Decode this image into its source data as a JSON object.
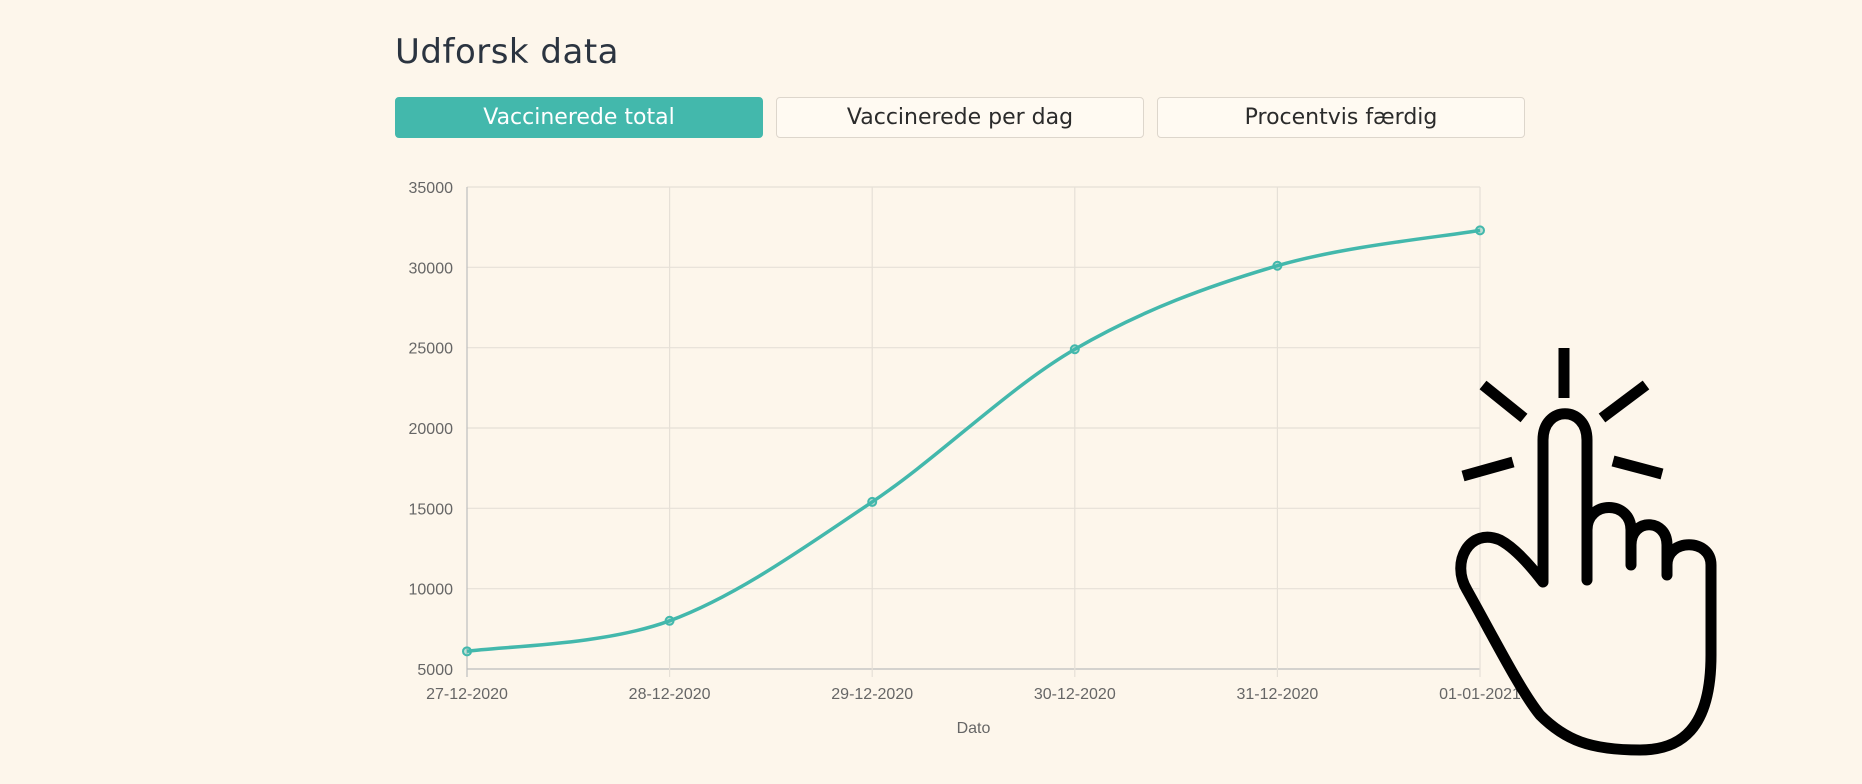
{
  "header": {
    "title": "Udforsk data"
  },
  "tabs": [
    {
      "label": "Vaccinerede total",
      "active": true
    },
    {
      "label": "Vaccinerede per dag",
      "active": false
    },
    {
      "label": "Procentvis færdig",
      "active": false
    }
  ],
  "colors": {
    "accent": "#43b8ac",
    "background": "#fdf6eb"
  },
  "icons": {
    "pointer": "hand-pointer-click-icon"
  },
  "chart_data": {
    "type": "line",
    "x": [
      "27-12-2020",
      "28-12-2020",
      "29-12-2020",
      "30-12-2020",
      "31-12-2020",
      "01-01-2021"
    ],
    "series": [
      {
        "values": [
          6100,
          8000,
          15400,
          24900,
          30100,
          32300
        ]
      }
    ],
    "xlabel": "Dato",
    "ylabel": "",
    "ylim": [
      5000,
      35000
    ],
    "yticks": [
      5000,
      10000,
      15000,
      20000,
      25000,
      30000,
      35000
    ],
    "grid": true,
    "legend": "none"
  }
}
